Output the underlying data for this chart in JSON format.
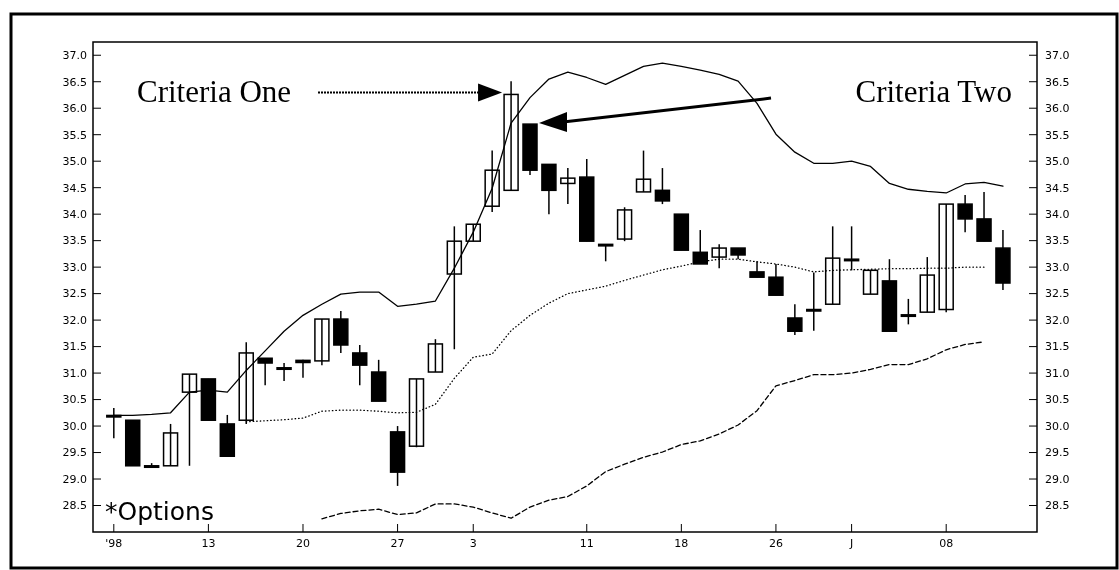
{
  "chart_data": {
    "type": "candlestick",
    "categories": [
      "'98",
      null,
      null,
      null,
      null,
      "13",
      null,
      null,
      null,
      null,
      "20",
      null,
      null,
      null,
      null,
      "27",
      null,
      null,
      null,
      "3",
      null,
      null,
      null,
      null,
      null,
      "11",
      null,
      null,
      null,
      null,
      "18",
      null,
      null,
      null,
      null,
      "26",
      null,
      null,
      null,
      "J",
      null,
      null,
      null,
      null,
      "08",
      null,
      null,
      null
    ],
    "ohlc": [
      [
        30.2,
        30.34,
        29.77,
        30.2
      ],
      [
        30.11,
        30.11,
        29.25,
        29.25
      ],
      [
        29.25,
        29.3,
        29.25,
        29.25
      ],
      [
        29.25,
        30.04,
        29.25,
        29.87
      ],
      [
        30.64,
        30.98,
        29.25,
        30.98
      ],
      [
        30.89,
        30.89,
        30.11,
        30.11
      ],
      [
        30.04,
        30.21,
        29.43,
        29.43
      ],
      [
        30.11,
        31.58,
        30.04,
        31.38
      ],
      [
        31.28,
        31.28,
        30.77,
        31.19
      ],
      [
        31.1,
        31.19,
        30.85,
        31.1
      ],
      [
        31.24,
        31.25,
        30.91,
        31.2
      ],
      [
        31.23,
        32.02,
        31.15,
        32.02
      ],
      [
        32.02,
        32.17,
        31.38,
        31.53
      ],
      [
        31.38,
        31.53,
        30.77,
        31.15
      ],
      [
        31.02,
        31.25,
        30.47,
        30.47
      ],
      [
        29.89,
        30.0,
        28.87,
        29.13
      ],
      [
        29.62,
        30.89,
        29.6,
        30.89
      ],
      [
        31.02,
        31.64,
        31.02,
        31.55
      ],
      [
        32.87,
        33.77,
        31.45,
        33.49
      ],
      [
        33.49,
        33.81,
        33.49,
        33.81
      ],
      [
        34.15,
        35.2,
        34.04,
        34.83
      ],
      [
        34.45,
        36.51,
        34.45,
        36.26
      ],
      [
        35.7,
        35.7,
        34.74,
        34.83
      ],
      [
        34.94,
        34.94,
        34.0,
        34.45
      ],
      [
        34.58,
        34.87,
        34.19,
        34.68
      ],
      [
        34.7,
        35.04,
        33.49,
        33.49
      ],
      [
        33.43,
        33.43,
        33.11,
        33.43
      ],
      [
        33.53,
        34.13,
        33.49,
        34.08
      ],
      [
        34.42,
        35.2,
        34.42,
        34.66
      ],
      [
        34.45,
        34.87,
        34.19,
        34.25
      ],
      [
        34.0,
        34.0,
        33.32,
        33.32
      ],
      [
        33.28,
        33.7,
        33.06,
        33.06
      ],
      [
        33.19,
        33.43,
        32.98,
        33.36
      ],
      [
        33.36,
        33.36,
        33.15,
        33.23
      ],
      [
        32.91,
        33.11,
        32.81,
        32.81
      ],
      [
        32.81,
        33.06,
        32.47,
        32.47
      ],
      [
        32.04,
        32.3,
        31.72,
        31.79
      ],
      [
        32.2,
        32.9,
        31.8,
        32.2
      ],
      [
        32.3,
        33.77,
        32.3,
        33.17
      ],
      [
        33.15,
        33.77,
        32.94,
        33.15
      ],
      [
        32.49,
        32.94,
        32.49,
        32.94
      ],
      [
        32.74,
        33.15,
        31.79,
        31.79
      ],
      [
        32.1,
        32.4,
        31.92,
        32.1
      ],
      [
        32.15,
        33.19,
        32.15,
        32.85
      ],
      [
        32.2,
        34.19,
        32.15,
        34.19
      ],
      [
        34.19,
        34.36,
        33.66,
        33.91
      ],
      [
        33.91,
        34.42,
        33.49,
        33.49
      ],
      [
        33.36,
        33.7,
        32.57,
        32.7
      ]
    ],
    "series": [
      {
        "type": "line",
        "color": "#000000",
        "line_style": "solid",
        "values": [
          30.2,
          30.2,
          30.22,
          30.25,
          30.64,
          30.68,
          30.64,
          31.05,
          31.42,
          31.79,
          32.09,
          32.3,
          32.49,
          32.53,
          32.53,
          32.26,
          32.3,
          32.36,
          32.98,
          33.66,
          34.49,
          35.72,
          36.2,
          36.55,
          36.68,
          36.58,
          36.45,
          36.62,
          36.79,
          36.85,
          36.79,
          36.72,
          36.64,
          36.51,
          36.09,
          35.51,
          35.17,
          34.96,
          34.96,
          35.0,
          34.9,
          34.58,
          34.47,
          34.43,
          34.4,
          34.57,
          34.6,
          34.53
        ]
      },
      {
        "type": "line",
        "color": "#000000",
        "line_style": "dotted",
        "values": [
          null,
          null,
          null,
          null,
          null,
          null,
          null,
          30.08,
          30.1,
          30.12,
          30.15,
          30.28,
          30.3,
          30.3,
          30.28,
          30.25,
          30.26,
          30.41,
          30.9,
          31.3,
          31.36,
          31.8,
          32.09,
          32.32,
          32.5,
          32.57,
          32.64,
          32.75,
          32.85,
          32.95,
          33.02,
          33.1,
          33.15,
          33.15,
          33.1,
          33.06,
          33.0,
          32.91,
          32.94,
          32.95,
          32.96,
          32.97,
          32.97,
          32.98,
          32.98,
          33.0,
          33.0,
          null
        ]
      },
      {
        "type": "line",
        "color": "#000000",
        "line_style": "dashed",
        "values": [
          null,
          null,
          null,
          null,
          null,
          null,
          null,
          null,
          null,
          null,
          null,
          28.25,
          28.35,
          28.4,
          28.43,
          28.33,
          28.36,
          28.53,
          28.53,
          28.47,
          28.36,
          28.26,
          28.47,
          28.6,
          28.67,
          28.87,
          29.14,
          29.28,
          29.41,
          29.51,
          29.65,
          29.72,
          29.85,
          30.02,
          30.29,
          30.76,
          30.86,
          30.97,
          30.97,
          31.0,
          31.07,
          31.16,
          31.16,
          31.27,
          31.44,
          31.54,
          31.59,
          null
        ]
      }
    ],
    "ylim": [
      28.0,
      37.25
    ],
    "yticks": [
      {
        "value": 37,
        "label": "37.0"
      },
      {
        "value": 36.5,
        "label": "36.5"
      },
      {
        "value": 36,
        "label": "36.0"
      },
      {
        "value": 35.5,
        "label": "35.5"
      },
      {
        "value": 35,
        "label": "35.0"
      },
      {
        "value": 34.5,
        "label": "34.5"
      },
      {
        "value": 34,
        "label": "34.0"
      },
      {
        "value": 33.5,
        "label": "33.5"
      },
      {
        "value": 33,
        "label": "33.0"
      },
      {
        "value": 32.5,
        "label": "32.5"
      },
      {
        "value": 32,
        "label": "32.0"
      },
      {
        "value": 31.5,
        "label": "31.5"
      },
      {
        "value": 31,
        "label": "31.0"
      },
      {
        "value": 30.5,
        "label": "30.5"
      },
      {
        "value": 30,
        "label": "30.0"
      },
      {
        "value": 29.5,
        "label": "29.5"
      },
      {
        "value": 29,
        "label": "29.0"
      },
      {
        "value": 28.5,
        "label": "28.5"
      }
    ],
    "y2lim": [
      28.0,
      37.25
    ],
    "y2ticks": [
      {
        "value": 37,
        "label": "37.0"
      },
      {
        "value": 36.5,
        "label": "36.5"
      },
      {
        "value": 36,
        "label": "36.0"
      },
      {
        "value": 35.5,
        "label": "35.5"
      },
      {
        "value": 35,
        "label": "35.0"
      },
      {
        "value": 34.5,
        "label": "34.5"
      },
      {
        "value": 34,
        "label": "34.0"
      },
      {
        "value": 33.5,
        "label": "33.5"
      },
      {
        "value": 33,
        "label": "33.0"
      },
      {
        "value": 32.5,
        "label": "32.5"
      },
      {
        "value": 32,
        "label": "32.0"
      },
      {
        "value": 31.5,
        "label": "31.5"
      },
      {
        "value": 31,
        "label": "31.0"
      },
      {
        "value": 30.5,
        "label": "30.5"
      },
      {
        "value": 30,
        "label": "30.0"
      },
      {
        "value": 29.5,
        "label": "29.5"
      },
      {
        "value": 29,
        "label": "29.0"
      },
      {
        "value": 28.5,
        "label": "28.5"
      }
    ],
    "annotations": [
      "Criteria One",
      "Criteria Two",
      "*Options"
    ]
  }
}
